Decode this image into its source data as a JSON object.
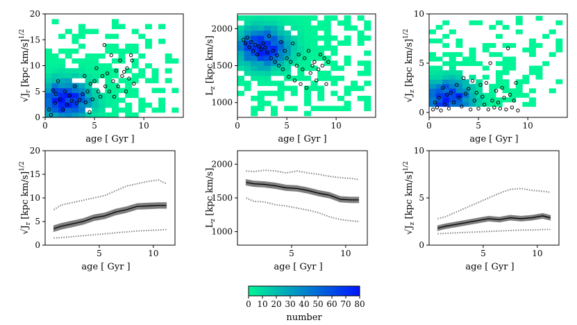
{
  "chart_data": [
    {
      "type": "heatmap",
      "panel": "top-left",
      "xlabel": "age [ Gyr ]",
      "ylabel": "√J_r [kpc km/s]^1/2",
      "ylabel_main": "√J",
      "ylabel_sub": "r",
      "ylabel_unit": " [kpc km/s]",
      "ylabel_exp": "1/2",
      "xlim": [
        0,
        14
      ],
      "ylim": [
        0,
        20
      ],
      "xticks": [
        "0",
        "5",
        "10"
      ],
      "xtick_values": [
        0,
        5,
        10
      ],
      "yticks": [
        "0",
        "5",
        "10",
        "15",
        "20"
      ],
      "ytick_values": [
        0,
        5,
        10,
        15,
        20
      ],
      "bins": {
        "nx": 20,
        "ny": 20
      },
      "density_peak": {
        "x": 2.0,
        "y": 3.5,
        "sx": 1.8,
        "sy": 2.5,
        "max": 80
      },
      "extent": {
        "x": [
          0,
          13.5
        ],
        "y": [
          0,
          19
        ]
      },
      "points": [
        [
          0.4,
          1.5
        ],
        [
          0.6,
          0.5
        ],
        [
          0.8,
          5.2
        ],
        [
          1,
          2.8
        ],
        [
          1.1,
          4.5
        ],
        [
          1.3,
          7
        ],
        [
          1.5,
          3.5
        ],
        [
          1.8,
          1.5
        ],
        [
          2,
          5
        ],
        [
          2.2,
          2.5
        ],
        [
          2.5,
          4.2
        ],
        [
          2.7,
          3.2
        ],
        [
          3,
          6
        ],
        [
          3.2,
          2.8
        ],
        [
          3.5,
          3.4
        ],
        [
          3.8,
          4.5
        ],
        [
          4,
          8
        ],
        [
          4.1,
          2.9
        ],
        [
          4.3,
          5
        ],
        [
          4.5,
          1
        ],
        [
          4.6,
          6.5
        ],
        [
          4.8,
          3.5
        ],
        [
          5,
          7
        ],
        [
          5.2,
          9.5
        ],
        [
          5.4,
          5
        ],
        [
          5.6,
          4
        ],
        [
          5.8,
          8
        ],
        [
          6,
          14
        ],
        [
          6.1,
          6
        ],
        [
          6.3,
          8.5
        ],
        [
          6.5,
          5
        ],
        [
          6.7,
          12
        ],
        [
          6.9,
          7
        ],
        [
          7,
          4
        ],
        [
          7.2,
          9
        ],
        [
          7.4,
          6
        ],
        [
          7.6,
          11
        ],
        [
          7.8,
          8
        ],
        [
          8,
          8.8
        ],
        [
          8.2,
          5
        ],
        [
          8.3,
          9.5
        ],
        [
          8.5,
          7.5
        ],
        [
          8.7,
          12
        ],
        [
          8.8,
          11
        ],
        [
          9,
          6.5
        ]
      ]
    },
    {
      "type": "heatmap",
      "panel": "top-middle",
      "xlabel": "age [ Gyr ]",
      "ylabel": "L_z [kpc km/s]",
      "ylabel_main": "L",
      "ylabel_sub": "z",
      "ylabel_unit": " [kpc km/s]",
      "ylabel_exp": "",
      "xlim": [
        0,
        14
      ],
      "ylim": [
        800,
        2200
      ],
      "xticks": [
        "0",
        "5",
        "10"
      ],
      "xtick_values": [
        0,
        5,
        10
      ],
      "yticks": [
        "1000",
        "1500",
        "2000"
      ],
      "ytick_values": [
        1000,
        1500,
        2000
      ],
      "bins": {
        "nx": 20,
        "ny": 20
      },
      "density_peak": {
        "x": 2.5,
        "y": 1750,
        "sx": 1.8,
        "sy": 180,
        "max": 80
      },
      "extent": {
        "x": [
          0,
          13.5
        ],
        "y": [
          820,
          2180
        ]
      },
      "points": [
        [
          0.6,
          1850
        ],
        [
          0.8,
          1800
        ],
        [
          1,
          1880
        ],
        [
          1.2,
          1750
        ],
        [
          1.4,
          1820
        ],
        [
          1.6,
          1700
        ],
        [
          1.8,
          1780
        ],
        [
          2,
          1650
        ],
        [
          2.2,
          1760
        ],
        [
          2.4,
          1720
        ],
        [
          2.6,
          1800
        ],
        [
          2.8,
          1740
        ],
        [
          3,
          1680
        ],
        [
          3.2,
          1900
        ],
        [
          3.4,
          1600
        ],
        [
          3.6,
          1700
        ],
        [
          3.8,
          1550
        ],
        [
          4,
          1640
        ],
        [
          4.2,
          1500
        ],
        [
          4.4,
          1820
        ],
        [
          4.6,
          1450
        ],
        [
          4.8,
          1700
        ],
        [
          5,
          1600
        ],
        [
          5.2,
          1350
        ],
        [
          5.4,
          1550
        ],
        [
          5.6,
          1800
        ],
        [
          5.8,
          1300
        ],
        [
          6,
          1500
        ],
        [
          6.2,
          1650
        ],
        [
          6.4,
          1250
        ],
        [
          6.6,
          1450
        ],
        [
          6.8,
          1600
        ],
        [
          7,
          1200
        ],
        [
          7.2,
          1700
        ],
        [
          7.4,
          1400
        ],
        [
          7.6,
          1500
        ],
        [
          7.8,
          1550
        ],
        [
          8,
          1300
        ],
        [
          8.2,
          1450
        ],
        [
          8.4,
          1650
        ],
        [
          8.6,
          1500
        ],
        [
          8.8,
          1600
        ],
        [
          9,
          1250
        ],
        [
          9.2,
          1550
        ]
      ]
    },
    {
      "type": "heatmap",
      "panel": "top-right",
      "xlabel": "age [ Gyr ]",
      "ylabel": "√J_z [kpc km/s]^1/2",
      "ylabel_main": "√J",
      "ylabel_sub": "z",
      "ylabel_unit": " [kpc km/s]",
      "ylabel_exp": "1/2",
      "xlim": [
        0,
        14
      ],
      "ylim": [
        -0.5,
        10
      ],
      "xticks": [
        "0",
        "5",
        "10"
      ],
      "xtick_values": [
        0,
        5,
        10
      ],
      "yticks": [
        "0",
        "5",
        "10"
      ],
      "ytick_values": [
        0,
        5,
        10
      ],
      "bins": {
        "nx": 20,
        "ny": 20
      },
      "density_peak": {
        "x": 2.0,
        "y": 1.5,
        "sx": 1.6,
        "sy": 1.2,
        "max": 80
      },
      "extent": {
        "x": [
          0,
          13.5
        ],
        "y": [
          0.6,
          9.8
        ]
      },
      "points": [
        [
          0.4,
          0.3
        ],
        [
          0.6,
          1.0
        ],
        [
          0.8,
          0.5
        ],
        [
          1,
          1.5
        ],
        [
          1.2,
          0.2
        ],
        [
          1.4,
          2.5
        ],
        [
          1.6,
          0.8
        ],
        [
          1.8,
          1.8
        ],
        [
          2,
          0.4
        ],
        [
          2.2,
          2.0
        ],
        [
          2.5,
          1.0
        ],
        [
          2.8,
          2.8
        ],
        [
          3,
          1.5
        ],
        [
          3.3,
          0.6
        ],
        [
          3.5,
          3.5
        ],
        [
          3.7,
          1.9
        ],
        [
          4,
          2.4
        ],
        [
          4.2,
          0.3
        ],
        [
          4.4,
          3.2
        ],
        [
          4.6,
          1.2
        ],
        [
          4.8,
          2.0
        ],
        [
          5,
          0.4
        ],
        [
          5.2,
          2.8
        ],
        [
          5.4,
          1.6
        ],
        [
          5.6,
          0.8
        ],
        [
          5.8,
          3.0
        ],
        [
          6,
          0.3
        ],
        [
          6.2,
          5.0
        ],
        [
          6.4,
          1.2
        ],
        [
          6.6,
          0.5
        ],
        [
          6.8,
          2.2
        ],
        [
          7,
          1.0
        ],
        [
          7.2,
          0.4
        ],
        [
          7.4,
          2.5
        ],
        [
          7.6,
          1.5
        ],
        [
          7.8,
          0.3
        ],
        [
          8,
          6.5
        ],
        [
          8.2,
          1.8
        ],
        [
          8.4,
          0.5
        ],
        [
          8.6,
          1.2
        ],
        [
          8.8,
          3.0
        ],
        [
          9,
          0.2
        ]
      ]
    },
    {
      "type": "line",
      "panel": "bottom-left",
      "xlabel": "age [ Gyr ]",
      "ylabel": "√J_r [kpc km/s]^1/2",
      "ylabel_main": "√J",
      "ylabel_sub": "r",
      "ylabel_unit": " [kpc km/s]",
      "ylabel_exp": "1/2",
      "xlim": [
        0,
        12
      ],
      "ylim": [
        0,
        20
      ],
      "xticks": [
        "5",
        "10"
      ],
      "xtick_values": [
        5,
        10
      ],
      "yticks": [
        "0",
        "5",
        "10",
        "15",
        "20"
      ],
      "ytick_values": [
        0,
        5,
        10,
        15,
        20
      ],
      "x": [
        0.8,
        1.5,
        2.5,
        3.5,
        4.5,
        5.5,
        6.5,
        7.5,
        8.5,
        9.5,
        10.5,
        11.2
      ],
      "series": [
        {
          "name": "median",
          "values": [
            3.5,
            4.0,
            4.5,
            5.0,
            5.8,
            6.2,
            7.0,
            7.5,
            8.2,
            8.3,
            8.4,
            8.4
          ]
        },
        {
          "name": "upper",
          "values": [
            7.5,
            8.5,
            9.0,
            9.5,
            10.0,
            10.5,
            11.5,
            12.5,
            13.0,
            13.5,
            13.8,
            13.0
          ]
        },
        {
          "name": "lower",
          "values": [
            1.5,
            1.6,
            1.8,
            2.0,
            2.2,
            2.4,
            2.6,
            2.8,
            3.0,
            3.1,
            3.2,
            3.3
          ]
        }
      ],
      "band": 0.6
    },
    {
      "type": "line",
      "panel": "bottom-middle",
      "xlabel": "age [ Gyr ]",
      "ylabel": "L_z [kpc km/s]",
      "ylabel_main": "L",
      "ylabel_sub": "z",
      "ylabel_unit": " [kpc km/s]",
      "ylabel_exp": "",
      "xlim": [
        0,
        12
      ],
      "ylim": [
        800,
        2200
      ],
      "xticks": [
        "5",
        "10"
      ],
      "xtick_values": [
        5,
        10
      ],
      "yticks": [
        "1000",
        "1500",
        "2000"
      ],
      "ytick_values": [
        1000,
        1500,
        2000
      ],
      "x": [
        0.8,
        1.5,
        2.5,
        3.5,
        4.5,
        5.5,
        6.5,
        7.5,
        8.5,
        9.5,
        10.5,
        11.2
      ],
      "series": [
        {
          "name": "median",
          "values": [
            1730,
            1710,
            1700,
            1680,
            1650,
            1640,
            1610,
            1570,
            1540,
            1480,
            1470,
            1470
          ]
        },
        {
          "name": "upper",
          "values": [
            1900,
            1890,
            1910,
            1900,
            1870,
            1900,
            1870,
            1850,
            1820,
            1800,
            1790,
            1770
          ]
        },
        {
          "name": "lower",
          "values": [
            1500,
            1450,
            1440,
            1400,
            1380,
            1350,
            1320,
            1280,
            1220,
            1180,
            1160,
            1150
          ]
        }
      ],
      "band": 40
    },
    {
      "type": "line",
      "panel": "bottom-right",
      "xlabel": "age [ Gyr ]",
      "ylabel": "√J_z [kpc km/s]^1/2",
      "ylabel_main": "√J",
      "ylabel_sub": "z",
      "ylabel_unit": " [kpc km/s]",
      "ylabel_exp": "1/2",
      "xlim": [
        0,
        12
      ],
      "ylim": [
        0,
        10
      ],
      "xticks": [
        "5",
        "10"
      ],
      "xtick_values": [
        5,
        10
      ],
      "yticks": [
        "0",
        "5",
        "10"
      ],
      "ytick_values": [
        0,
        5,
        10
      ],
      "x": [
        0.8,
        1.5,
        2.5,
        3.5,
        4.5,
        5.5,
        6.5,
        7.5,
        8.5,
        9.5,
        10.5,
        11.2
      ],
      "series": [
        {
          "name": "median",
          "values": [
            1.8,
            2.0,
            2.2,
            2.4,
            2.6,
            2.8,
            2.7,
            2.9,
            2.8,
            2.9,
            3.1,
            2.9
          ]
        },
        {
          "name": "upper",
          "values": [
            2.8,
            3.0,
            3.5,
            4.0,
            4.5,
            5.0,
            5.5,
            5.9,
            6.0,
            5.8,
            5.7,
            5.6
          ]
        },
        {
          "name": "lower",
          "values": [
            1.2,
            1.25,
            1.3,
            1.35,
            1.4,
            1.45,
            1.5,
            1.55,
            1.6,
            1.6,
            1.65,
            1.65
          ]
        }
      ],
      "band": 0.25
    }
  ],
  "colorbar": {
    "label": "number",
    "ticks": [
      "0",
      "10",
      "20",
      "30",
      "40",
      "50",
      "60",
      "70",
      "80"
    ],
    "tick_values": [
      0,
      10,
      20,
      30,
      40,
      50,
      60,
      70,
      80
    ],
    "range": [
      0,
      80
    ],
    "color_low": "#00f596",
    "color_high": "#0015ff"
  }
}
